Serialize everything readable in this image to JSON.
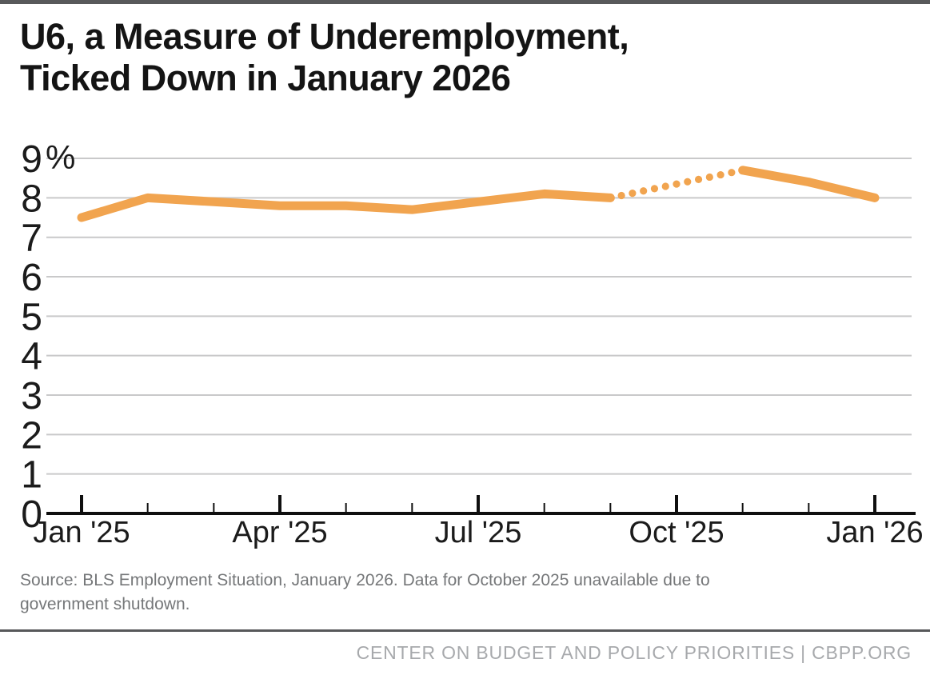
{
  "page": {
    "title_line1": "U6, a Measure of Underemployment,",
    "title_line2": "Ticked Down in January 2026",
    "source_line1": "Source: BLS Employment Situation, January 2026. Data for October 2025 unavailable due to",
    "source_line2": "government shutdown.",
    "footer": "CENTER ON BUDGET AND POLICY PRIORITIES | CBPP.ORG"
  },
  "colors": {
    "accent_orange": "#F1A44F",
    "gridline": "#c9c9ca",
    "axis": "#0f0f0f",
    "tick_label": "#1b1b1b",
    "top_bar": "#58595b",
    "source_text": "#757779",
    "footer_text": "#a7a9ac"
  },
  "chart_data": {
    "type": "line",
    "title": "U6, a Measure of Underemployment, Ticked Down in January 2026",
    "unit": "%",
    "x": [
      "Jan '25",
      "Feb '25",
      "Mar '25",
      "Apr '25",
      "May '25",
      "Jun '25",
      "Jul '25",
      "Aug '25",
      "Sep '25",
      "Oct '25",
      "Nov '25",
      "Dec '25",
      "Jan '26"
    ],
    "series": [
      {
        "name": "U6 underemployment rate (%)",
        "values": [
          7.5,
          8.0,
          7.9,
          7.8,
          7.8,
          7.7,
          7.9,
          8.1,
          8.0,
          null,
          8.7,
          8.4,
          8.0
        ],
        "missing_segment": {
          "from": "Sep '25",
          "to": "Nov '25",
          "endpoint_values": [
            8.0,
            8.7
          ],
          "style": "dotted",
          "reason": "Data for October 2025 unavailable due to government shutdown"
        }
      }
    ],
    "x_major_ticks": [
      "Jan '25",
      "Apr '25",
      "Jul '25",
      "Oct '25",
      "Jan '26"
    ],
    "y_ticks": [
      0,
      1,
      2,
      3,
      4,
      5,
      6,
      7,
      8,
      9
    ],
    "y_top_tick_label": "9%",
    "ylim": [
      0,
      9.4
    ],
    "grid": true,
    "legend": false
  }
}
